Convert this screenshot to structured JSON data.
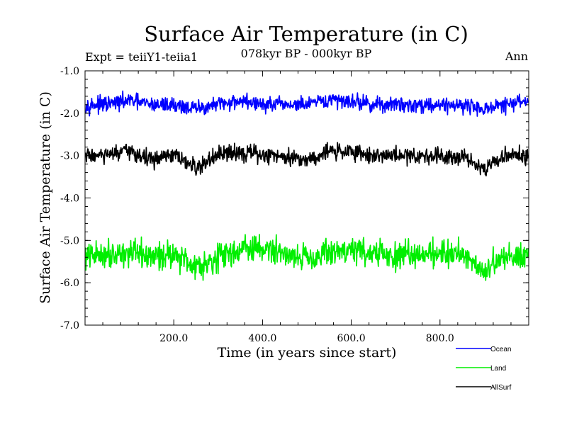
{
  "chart_data": {
    "type": "line",
    "title": "Surface Air Temperature (in C)",
    "subtitle": "078kyr BP - 000kyr BP",
    "left_label": "Expt = teiiY1-teiia1",
    "right_label": "Ann",
    "xlabel": "Time (in years since start)",
    "ylabel": "Surface Air Temperature (in C)",
    "xlim": [
      0,
      1000
    ],
    "ylim": [
      -7.0,
      -1.0
    ],
    "xticks": [
      200,
      400,
      600,
      800
    ],
    "xtick_labels": [
      "200.0",
      "400.0",
      "600.0",
      "800.0"
    ],
    "yticks": [
      -1.0,
      -2.0,
      -3.0,
      -4.0,
      -5.0,
      -6.0,
      -7.0
    ],
    "ytick_labels": [
      "-1.0",
      "-2.0",
      "-3.0",
      "-4.0",
      "-5.0",
      "-6.0",
      "-7.0"
    ],
    "grid": false,
    "legend_position": "below-right",
    "series": [
      {
        "name": "Ocean",
        "color": "#0000ff",
        "x": [
          0,
          50,
          100,
          150,
          200,
          250,
          300,
          350,
          400,
          450,
          500,
          550,
          600,
          650,
          700,
          750,
          800,
          850,
          900,
          950,
          1000
        ],
        "values": [
          -1.8,
          -1.8,
          -1.7,
          -1.8,
          -1.8,
          -1.9,
          -1.8,
          -1.7,
          -1.8,
          -1.8,
          -1.8,
          -1.7,
          -1.7,
          -1.8,
          -1.8,
          -1.8,
          -1.8,
          -1.8,
          -1.9,
          -1.8,
          -1.7
        ]
      },
      {
        "name": "Land",
        "color": "#00ee00",
        "x": [
          0,
          50,
          100,
          150,
          200,
          250,
          300,
          350,
          400,
          450,
          500,
          550,
          600,
          650,
          700,
          750,
          800,
          850,
          900,
          950,
          1000
        ],
        "values": [
          -5.4,
          -5.3,
          -5.3,
          -5.4,
          -5.3,
          -5.6,
          -5.4,
          -5.2,
          -5.2,
          -5.3,
          -5.4,
          -5.3,
          -5.2,
          -5.3,
          -5.4,
          -5.3,
          -5.3,
          -5.3,
          -5.7,
          -5.4,
          -5.3
        ]
      },
      {
        "name": "AllSurf",
        "color": "#000000",
        "x": [
          0,
          50,
          100,
          150,
          200,
          250,
          300,
          350,
          400,
          450,
          500,
          550,
          600,
          650,
          700,
          750,
          800,
          850,
          900,
          950,
          1000
        ],
        "values": [
          -3.0,
          -3.0,
          -2.9,
          -3.1,
          -3.0,
          -3.3,
          -3.0,
          -2.9,
          -3.0,
          -3.0,
          -3.1,
          -2.9,
          -2.9,
          -3.0,
          -3.0,
          -3.0,
          -3.0,
          -3.0,
          -3.3,
          -3.0,
          -3.0
        ]
      }
    ]
  }
}
